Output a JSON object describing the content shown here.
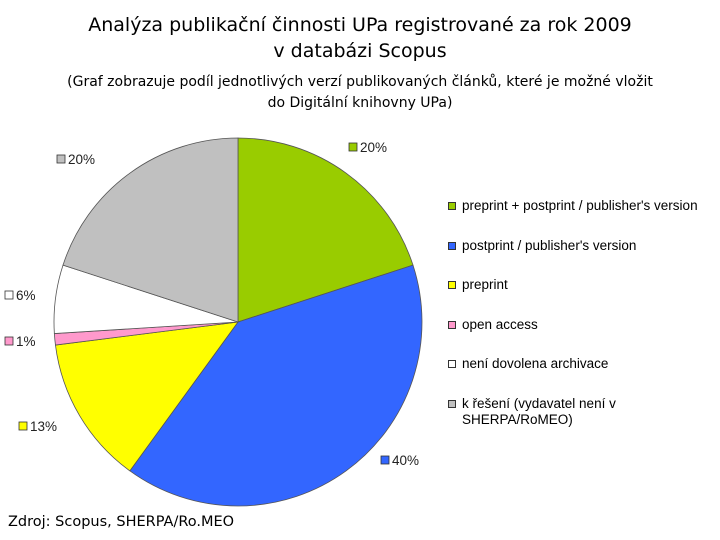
{
  "header": {
    "title_line1": "Analýza publikační činnosti UPa registrované za rok 2009",
    "title_line2": "v databázi Scopus",
    "subtitle_line1": "(Graf zobrazuje podíl jednotlivých verzí publikovaných článků, které je možné vložit",
    "subtitle_line2": "do Digitální knihovny UPa)"
  },
  "chart_data": {
    "type": "pie",
    "slices": [
      {
        "name": "preprint + postprint / publisher's version",
        "value": 20,
        "label": "20%",
        "color": "#99cc00"
      },
      {
        "name": "postprint / publisher's version",
        "value": 40,
        "label": "40%",
        "color": "#3366ff"
      },
      {
        "name": "preprint",
        "value": 13,
        "label": "13%",
        "color": "#ffff00"
      },
      {
        "name": "open access",
        "value": 1,
        "label": "1%",
        "color": "#ff99cc"
      },
      {
        "name": "není dovolena archivace",
        "value": 6,
        "label": "6%",
        "color": "#ffffff"
      },
      {
        "name": "k řešení (vydavatel není v SHERPA/RoMEO)",
        "value": 20,
        "label": "20%",
        "color": "#c0c0c0"
      }
    ],
    "legend_position": "right"
  },
  "legend": {
    "items": [
      {
        "label": "preprint + postprint / publisher's version"
      },
      {
        "label": "postprint / publisher's version"
      },
      {
        "label": "preprint"
      },
      {
        "label": "open access"
      },
      {
        "label": "není dovolena archivace"
      },
      {
        "label": "k řešení (vydavatel není v SHERPA/RoMEO)"
      }
    ]
  },
  "footer": {
    "source": "Zdroj: Scopus, SHERPA/Ro.MEO"
  }
}
